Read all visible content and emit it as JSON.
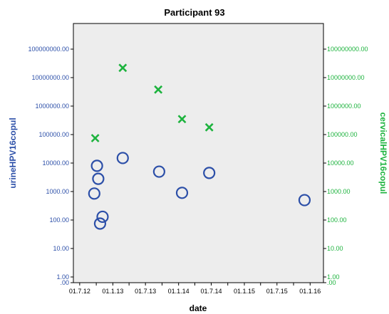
{
  "chart_data": {
    "type": "scatter",
    "title": "Participant 93",
    "xlabel": "date",
    "ylabel_left": "urineHPV16copul",
    "ylabel_right": "cervicalHPV16copul",
    "x_ticks": [
      "01.7.12",
      "01.10.12",
      "01.1.13",
      "01.4.13",
      "01.7.13",
      "01.10.13",
      "01.1.14",
      "01.4.14",
      "01.7.14",
      "01.10.14",
      "01.1.15",
      "01.4.15",
      "01.7.15",
      "01.10.15",
      "01.1.16"
    ],
    "x_tick_labels": [
      "01.7.12",
      "",
      "01.1.13",
      "",
      "01.7.13",
      "",
      "01.1.14",
      "",
      "01.7.14",
      "",
      "01.1.15",
      "",
      "01.7.15",
      "",
      "01.1.16"
    ],
    "xlim": [
      "2012-05-27",
      "2016-03-15"
    ],
    "y_scale": "log",
    "y_tick_labels_left": [
      "100000000.00",
      "10000000.00",
      "1000000.00",
      "100000.00",
      "10000.00",
      "1000.00",
      "100.00",
      "10.00",
      "1.00",
      ".00"
    ],
    "y_tick_labels_right": [
      "100000000.00",
      "10000000.00",
      "1000000.00",
      "100000.00",
      "10000.00",
      "1000.00",
      "100.00",
      "10.00",
      "1.00",
      ".00"
    ],
    "series": [
      {
        "name": "urineHPV16copul",
        "axis": "left",
        "marker": "circle",
        "color": "#2C4FA8",
        "points": [
          {
            "x": "2012-09-20",
            "y": 850
          },
          {
            "x": "2012-10-05",
            "y": 8000
          },
          {
            "x": "2012-10-12",
            "y": 2800
          },
          {
            "x": "2012-10-22",
            "y": 75
          },
          {
            "x": "2012-11-05",
            "y": 130
          },
          {
            "x": "2013-02-25",
            "y": 15000
          },
          {
            "x": "2013-09-15",
            "y": 5000
          },
          {
            "x": "2014-01-20",
            "y": 900
          },
          {
            "x": "2014-06-20",
            "y": 4500
          },
          {
            "x": "2015-12-01",
            "y": 500
          }
        ]
      },
      {
        "name": "cervicalHPV16copul",
        "axis": "right",
        "marker": "x",
        "color": "#1DB33E",
        "points": [
          {
            "x": "2012-09-25",
            "y": 75000
          },
          {
            "x": "2013-02-25",
            "y": 22000000
          },
          {
            "x": "2013-09-10",
            "y": 3800000
          },
          {
            "x": "2014-01-20",
            "y": 350000
          },
          {
            "x": "2014-06-20",
            "y": 180000
          }
        ]
      }
    ],
    "colors": {
      "plot_background": "#EDEDED",
      "left_axis": "#2C4FA8",
      "right_axis": "#1DB33E"
    }
  }
}
